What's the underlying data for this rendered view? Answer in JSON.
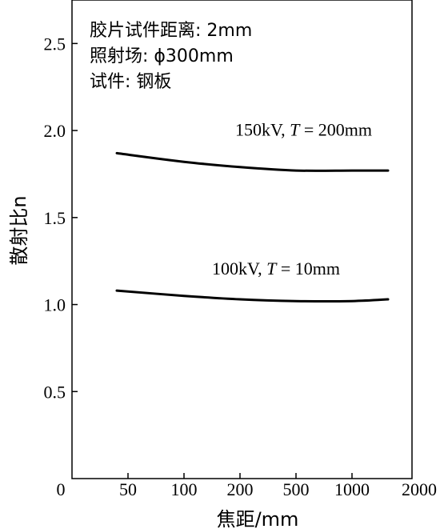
{
  "chart_data": {
    "type": "line",
    "title": "",
    "xlabel": "焦距/mm",
    "ylabel": "散射比n",
    "x_tick_labels": [
      "0",
      "50",
      "100",
      "200",
      "500",
      "1000",
      "2000"
    ],
    "y_ticks": [
      0.5,
      1.0,
      1.5,
      2.0,
      2.5
    ],
    "y_tick_labels": [
      "0.5",
      "1.0",
      "1.5",
      "2.0",
      "2.5"
    ],
    "ylim": [
      0,
      2.75
    ],
    "grid": false,
    "annotations": [
      "胶片试件距离: 2mm",
      "照射场: ϕ300mm",
      "试件: 钢板"
    ],
    "series": [
      {
        "name": "150kV, T = 200mm",
        "x": [
          40,
          100,
          200,
          500,
          1000,
          1600
        ],
        "y": [
          1.87,
          1.82,
          1.79,
          1.77,
          1.77,
          1.77
        ]
      },
      {
        "name": "100kV, T = 10mm",
        "x": [
          40,
          100,
          200,
          500,
          1000,
          1600
        ],
        "y": [
          1.08,
          1.05,
          1.03,
          1.02,
          1.02,
          1.03
        ]
      }
    ]
  }
}
